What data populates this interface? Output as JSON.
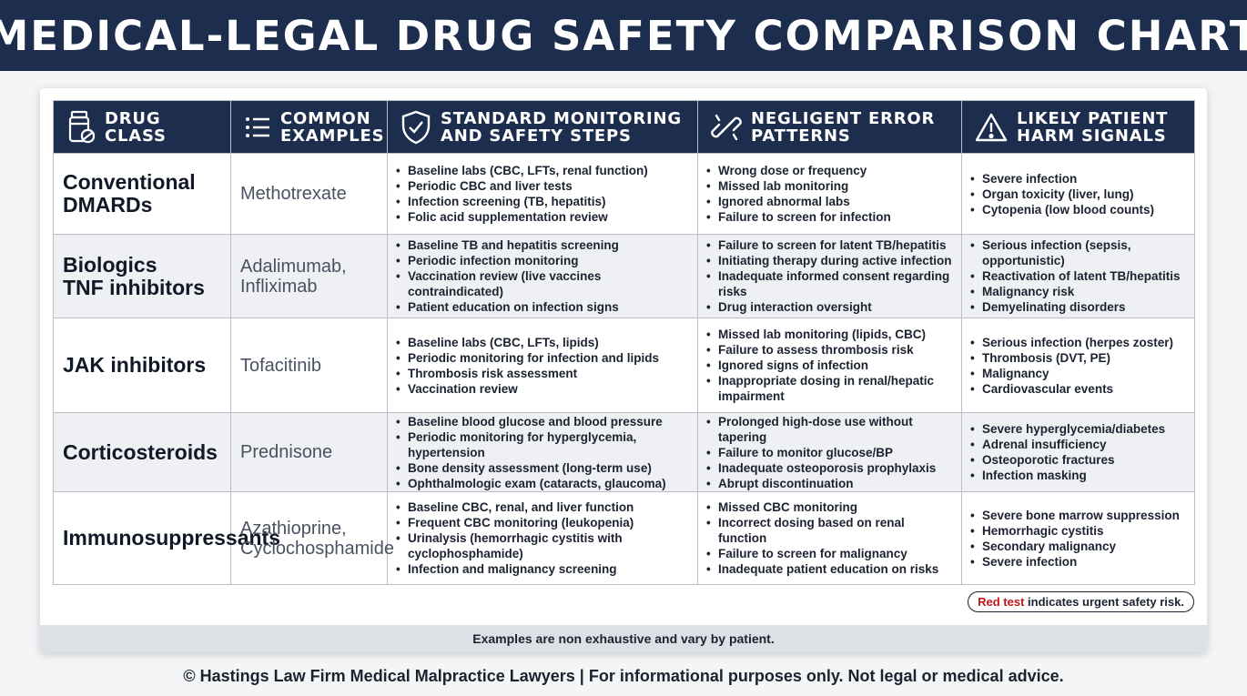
{
  "title": "MEDICAL-LEGAL DRUG SAFETY COMPARISON CHART",
  "headers": [
    {
      "icon": "pill-bottle-icon",
      "line1": "DRUG CLASS",
      "line2": ""
    },
    {
      "icon": "list-icon",
      "line1": "COMMON",
      "line2": "EXAMPLES"
    },
    {
      "icon": "shield-check-icon",
      "line1": "STANDARD MONITORING",
      "line2": "AND SAFETY STEPS"
    },
    {
      "icon": "broken-chain-icon",
      "line1": "NEGLIGENT ERROR",
      "line2": "PATTERNS"
    },
    {
      "icon": "warning-triangle-icon",
      "line1": "LIKELY PATIENT",
      "line2": "HARM SIGNALS"
    }
  ],
  "rows": [
    {
      "drug_class": [
        "Conventional",
        "DMARDs"
      ],
      "examples": [
        "Methotrexate"
      ],
      "monitoring": [
        "Baseline labs (CBC, LFTs, renal function)",
        "Periodic CBC and liver tests",
        "Infection screening (TB, hepatitis)",
        "Folic acid supplementation review"
      ],
      "errors": [
        "Wrong dose or frequency",
        "Missed lab monitoring",
        "Ignored abnormal labs",
        "Failure to screen for infection"
      ],
      "harms": [
        "Severe infection",
        "Organ toxicity (liver, lung)",
        "Cytopenia (low blood counts)"
      ]
    },
    {
      "drug_class": [
        "Biologics",
        "TNF inhibitors"
      ],
      "examples": [
        "Adalimumab,",
        "Infliximab"
      ],
      "monitoring": [
        "Baseline TB and hepatitis screening",
        "Periodic infection monitoring",
        "Vaccination review (live vaccines contraindicated)",
        "Patient education on infection signs"
      ],
      "errors": [
        "Failure to screen for latent TB/hepatitis",
        "Initiating therapy during active infection",
        "Inadequate informed consent regarding risks",
        "Drug interaction oversight"
      ],
      "harms": [
        "Serious infection (sepsis, opportunistic)",
        "Reactivation of latent TB/hepatitis",
        "Malignancy risk",
        "Demyelinating disorders"
      ]
    },
    {
      "drug_class": [
        "JAK inhibitors"
      ],
      "examples": [
        "Tofacitinib"
      ],
      "monitoring": [
        "Baseline labs (CBC, LFTs, lipids)",
        "Periodic monitoring for infection and lipids",
        "Thrombosis risk assessment",
        "Vaccination review"
      ],
      "errors": [
        "Missed lab monitoring (lipids, CBC)",
        "Failure to assess thrombosis risk",
        "Ignored signs of infection",
        "Inappropriate dosing in renal/hepatic impairment"
      ],
      "harms": [
        "Serious infection (herpes zoster)",
        "Thrombosis (DVT, PE)",
        "Malignancy",
        "Cardiovascular events"
      ]
    },
    {
      "drug_class": [
        "Corticosteroids"
      ],
      "examples": [
        "Prednisone"
      ],
      "monitoring": [
        "Baseline blood glucose and blood pressure",
        "Periodic monitoring for hyperglycemia, hypertension",
        "Bone density assessment (long-term use)",
        "Ophthalmologic exam (cataracts, glaucoma)"
      ],
      "errors": [
        "Prolonged high-dose use without tapering",
        "Failure to monitor glucose/BP",
        "Inadequate osteoporosis prophylaxis",
        "Abrupt discontinuation"
      ],
      "harms": [
        "Severe hyperglycemia/diabetes",
        "Adrenal insufficiency",
        "Osteoporotic fractures",
        "Infection masking"
      ]
    },
    {
      "drug_class": [
        "Immunosuppressants"
      ],
      "examples": [
        "Azathioprine,",
        "Cyclochosphamide"
      ],
      "monitoring": [
        "Baseline CBC, renal, and liver function",
        "Frequent CBC monitoring (leukopenia)",
        "Urinalysis (hemorrhagic cystitis with cyclophosphamide)",
        "Infection and malignancy screening"
      ],
      "errors": [
        "Missed CBC monitoring",
        "Incorrect dosing based on renal function",
        "Failure to screen for malignancy",
        "Inadequate patient education on risks"
      ],
      "harms": [
        "Severe bone marrow suppression",
        "Hemorrhagic cystitis",
        "Secondary malignancy",
        "Severe infection"
      ]
    }
  ],
  "legend": {
    "red_part": "Red test",
    "rest": " indicates urgent safety risk."
  },
  "footer_note": "Examples are non exhaustive and vary by patient.",
  "copyright": "© Hastings Law Firm Medical Malpractice Lawyers | For informational purposes only. Not legal or medical advice.",
  "colors": {
    "header_bg": "#1c2d4d",
    "accent_red": "#c2171a"
  }
}
